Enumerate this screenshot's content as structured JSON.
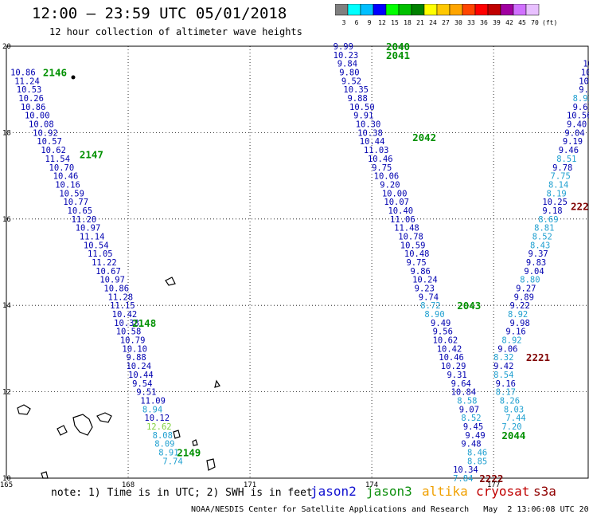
{
  "header": {
    "title": "12:00 — 23:59 UTC 05/01/2018",
    "subtitle": "12 hour collection of altimeter wave heights"
  },
  "colorbar": {
    "ticks": [
      "3",
      "6",
      "9",
      "12",
      "15",
      "18",
      "21",
      "24",
      "27",
      "30",
      "33",
      "36",
      "39",
      "42",
      "45",
      "70"
    ],
    "unit": "(ft)",
    "colors": [
      "#7f7f7f",
      "#00ffff",
      "#00bfff",
      "#0000ff",
      "#00ff00",
      "#00c000",
      "#008000",
      "#ffff00",
      "#ffc800",
      "#ffa500",
      "#ff4500",
      "#ff0000",
      "#c00000",
      "#a000a0",
      "#d070ff",
      "#e8c0ff"
    ]
  },
  "axes": {
    "x_ticks": [
      "165",
      "168",
      "171",
      "174",
      "177"
    ],
    "y_ticks": [
      "20",
      "18",
      "16",
      "14",
      "12",
      "10"
    ]
  },
  "footer": {
    "note": "note: 1) Time is in UTC; 2) SWH is in feet",
    "credit": "NOAA/NESDIS Center for Satellite Applications and Research   May  2 13:06:08 UTC 2018",
    "satellites": [
      {
        "name": "jason2",
        "color": "#1010d0"
      },
      {
        "name": "jason3",
        "color": "#109010"
      },
      {
        "name": "altika",
        "color": "#f0a000"
      },
      {
        "name": "cryosat",
        "color": "#c00000"
      },
      {
        "name": "s3a",
        "color": "#900000"
      }
    ]
  },
  "colors": {
    "track_blue": "#0000b0",
    "track_cyan": "#20a0d0",
    "track_lightgreen": "#80d040",
    "time_green": "#009000",
    "time_darkred": "#800000"
  },
  "tracks": [
    {
      "id": "track-left",
      "times": [
        {
          "label": "2146",
          "x": 165.9,
          "y": 19.4
        },
        {
          "label": "2147",
          "x": 166.8,
          "y": 17.5
        },
        {
          "label": "2148",
          "x": 168.1,
          "y": 13.6
        },
        {
          "label": "2149",
          "x": 169.2,
          "y": 10.6
        }
      ],
      "points": [
        {
          "v": "10.86",
          "x": 165.1,
          "y": 19.4,
          "c": "b"
        },
        {
          "v": "11.24",
          "x": 165.2,
          "y": 19.2,
          "c": "b"
        },
        {
          "v": "10.53",
          "x": 165.25,
          "y": 19.0,
          "c": "b"
        },
        {
          "v": "10.26",
          "x": 165.3,
          "y": 18.8,
          "c": "b"
        },
        {
          "v": "10.86",
          "x": 165.35,
          "y": 18.6,
          "c": "b"
        },
        {
          "v": "10.00",
          "x": 165.45,
          "y": 18.4,
          "c": "b"
        },
        {
          "v": "10.08",
          "x": 165.55,
          "y": 18.2,
          "c": "b"
        },
        {
          "v": "10.92",
          "x": 165.65,
          "y": 18.0,
          "c": "b"
        },
        {
          "v": "10.57",
          "x": 165.75,
          "y": 17.8,
          "c": "b"
        },
        {
          "v": "10.62",
          "x": 165.85,
          "y": 17.6,
          "c": "b"
        },
        {
          "v": "11.54",
          "x": 165.95,
          "y": 17.4,
          "c": "b"
        },
        {
          "v": "10.70",
          "x": 166.05,
          "y": 17.2,
          "c": "b"
        },
        {
          "v": "10.46",
          "x": 166.15,
          "y": 17.0,
          "c": "b"
        },
        {
          "v": "10.16",
          "x": 166.2,
          "y": 16.8,
          "c": "b"
        },
        {
          "v": "10.59",
          "x": 166.3,
          "y": 16.6,
          "c": "b"
        },
        {
          "v": "10.77",
          "x": 166.4,
          "y": 16.4,
          "c": "b"
        },
        {
          "v": "10.65",
          "x": 166.5,
          "y": 16.2,
          "c": "b"
        },
        {
          "v": "11.20",
          "x": 166.6,
          "y": 16.0,
          "c": "b"
        },
        {
          "v": "10.97",
          "x": 166.7,
          "y": 15.8,
          "c": "b"
        },
        {
          "v": "11.14",
          "x": 166.8,
          "y": 15.6,
          "c": "b"
        },
        {
          "v": "10.54",
          "x": 166.9,
          "y": 15.4,
          "c": "b"
        },
        {
          "v": "11.05",
          "x": 167.0,
          "y": 15.2,
          "c": "b"
        },
        {
          "v": "11.22",
          "x": 167.1,
          "y": 15.0,
          "c": "b"
        },
        {
          "v": "10.67",
          "x": 167.2,
          "y": 14.8,
          "c": "b"
        },
        {
          "v": "10.97",
          "x": 167.3,
          "y": 14.6,
          "c": "b"
        },
        {
          "v": "10.86",
          "x": 167.4,
          "y": 14.4,
          "c": "b"
        },
        {
          "v": "11.28",
          "x": 167.5,
          "y": 14.2,
          "c": "b"
        },
        {
          "v": "11.15",
          "x": 167.55,
          "y": 14.0,
          "c": "b"
        },
        {
          "v": "10.42",
          "x": 167.6,
          "y": 13.8,
          "c": "b"
        },
        {
          "v": "10.38",
          "x": 167.65,
          "y": 13.6,
          "c": "b"
        },
        {
          "v": "10.58",
          "x": 167.7,
          "y": 13.4,
          "c": "b"
        },
        {
          "v": "10.79",
          "x": 167.8,
          "y": 13.2,
          "c": "b"
        },
        {
          "v": "10.10",
          "x": 167.85,
          "y": 13.0,
          "c": "b"
        },
        {
          "v": "9.88",
          "x": 167.95,
          "y": 12.8,
          "c": "b"
        },
        {
          "v": "10.24",
          "x": 167.95,
          "y": 12.6,
          "c": "b"
        },
        {
          "v": "10.44",
          "x": 168.0,
          "y": 12.4,
          "c": "b"
        },
        {
          "v": "9.54",
          "x": 168.1,
          "y": 12.2,
          "c": "b"
        },
        {
          "v": "9.51",
          "x": 168.2,
          "y": 12.0,
          "c": "b"
        },
        {
          "v": "11.09",
          "x": 168.3,
          "y": 11.8,
          "c": "b"
        },
        {
          "v": "8.94",
          "x": 168.35,
          "y": 11.6,
          "c": "c"
        },
        {
          "v": "10.12",
          "x": 168.4,
          "y": 11.4,
          "c": "b"
        },
        {
          "v": "12.62",
          "x": 168.45,
          "y": 11.2,
          "c": "g"
        },
        {
          "v": "8.08",
          "x": 168.6,
          "y": 11.0,
          "c": "c"
        },
        {
          "v": "8.09",
          "x": 168.65,
          "y": 10.8,
          "c": "c"
        },
        {
          "v": "8.91",
          "x": 168.75,
          "y": 10.6,
          "c": "c"
        },
        {
          "v": "7.74",
          "x": 168.85,
          "y": 10.4,
          "c": "c"
        }
      ]
    },
    {
      "id": "track-middle",
      "times": [
        {
          "label": "2040",
          "x": 174.35,
          "y": 20.0
        },
        {
          "label": "2041",
          "x": 174.35,
          "y": 19.8
        },
        {
          "label": "2042",
          "x": 175.0,
          "y": 17.9
        },
        {
          "label": "2043",
          "x": 176.1,
          "y": 14.0
        },
        {
          "label": "2044",
          "x": 177.2,
          "y": 11.0
        }
      ],
      "points": [
        {
          "v": "9.99",
          "x": 173.05,
          "y": 20.0,
          "c": "b"
        },
        {
          "v": "10.23",
          "x": 173.05,
          "y": 19.8,
          "c": "b"
        },
        {
          "v": "9.84",
          "x": 173.15,
          "y": 19.6,
          "c": "b"
        },
        {
          "v": "9.80",
          "x": 173.2,
          "y": 19.4,
          "c": "b"
        },
        {
          "v": "9.52",
          "x": 173.25,
          "y": 19.2,
          "c": "b"
        },
        {
          "v": "10.35",
          "x": 173.3,
          "y": 19.0,
          "c": "b"
        },
        {
          "v": "9.88",
          "x": 173.4,
          "y": 18.8,
          "c": "b"
        },
        {
          "v": "10.50",
          "x": 173.45,
          "y": 18.6,
          "c": "b"
        },
        {
          "v": "9.91",
          "x": 173.55,
          "y": 18.4,
          "c": "b"
        },
        {
          "v": "10.30",
          "x": 173.6,
          "y": 18.2,
          "c": "b"
        },
        {
          "v": "10.38",
          "x": 173.65,
          "y": 18.0,
          "c": "b"
        },
        {
          "v": "10.44",
          "x": 173.7,
          "y": 17.8,
          "c": "b"
        },
        {
          "v": "11.03",
          "x": 173.8,
          "y": 17.6,
          "c": "b"
        },
        {
          "v": "10.46",
          "x": 173.9,
          "y": 17.4,
          "c": "b"
        },
        {
          "v": "9.75",
          "x": 174.0,
          "y": 17.2,
          "c": "b"
        },
        {
          "v": "10.06",
          "x": 174.05,
          "y": 17.0,
          "c": "b"
        },
        {
          "v": "9.20",
          "x": 174.2,
          "y": 16.8,
          "c": "b"
        },
        {
          "v": "10.00",
          "x": 174.25,
          "y": 16.6,
          "c": "b"
        },
        {
          "v": "10.07",
          "x": 174.3,
          "y": 16.4,
          "c": "b"
        },
        {
          "v": "10.40",
          "x": 174.4,
          "y": 16.2,
          "c": "b"
        },
        {
          "v": "11.06",
          "x": 174.45,
          "y": 16.0,
          "c": "b"
        },
        {
          "v": "11.48",
          "x": 174.55,
          "y": 15.8,
          "c": "b"
        },
        {
          "v": "10.78",
          "x": 174.65,
          "y": 15.6,
          "c": "b"
        },
        {
          "v": "10.59",
          "x": 174.7,
          "y": 15.4,
          "c": "b"
        },
        {
          "v": "10.48",
          "x": 174.8,
          "y": 15.2,
          "c": "b"
        },
        {
          "v": "9.75",
          "x": 174.85,
          "y": 15.0,
          "c": "b"
        },
        {
          "v": "9.86",
          "x": 174.95,
          "y": 14.8,
          "c": "b"
        },
        {
          "v": "10.24",
          "x": 175.0,
          "y": 14.6,
          "c": "b"
        },
        {
          "v": "9.23",
          "x": 175.05,
          "y": 14.4,
          "c": "b"
        },
        {
          "v": "9.74",
          "x": 175.15,
          "y": 14.2,
          "c": "b"
        },
        {
          "v": "8.72",
          "x": 175.2,
          "y": 14.0,
          "c": "c"
        },
        {
          "v": "8.90",
          "x": 175.3,
          "y": 13.8,
          "c": "c"
        },
        {
          "v": "9.49",
          "x": 175.45,
          "y": 13.6,
          "c": "b"
        },
        {
          "v": "9.56",
          "x": 175.5,
          "y": 13.4,
          "c": "b"
        },
        {
          "v": "10.62",
          "x": 175.5,
          "y": 13.2,
          "c": "b"
        },
        {
          "v": "10.42",
          "x": 175.6,
          "y": 13.0,
          "c": "b"
        },
        {
          "v": "10.46",
          "x": 175.65,
          "y": 12.8,
          "c": "b"
        },
        {
          "v": "10.29",
          "x": 175.7,
          "y": 12.6,
          "c": "b"
        },
        {
          "v": "9.31",
          "x": 175.85,
          "y": 12.4,
          "c": "b"
        },
        {
          "v": "9.64",
          "x": 175.95,
          "y": 12.2,
          "c": "b"
        },
        {
          "v": "10.84",
          "x": 175.95,
          "y": 12.0,
          "c": "b"
        },
        {
          "v": "8.58",
          "x": 176.1,
          "y": 11.8,
          "c": "c"
        },
        {
          "v": "9.07",
          "x": 176.15,
          "y": 11.6,
          "c": "b"
        },
        {
          "v": "8.52",
          "x": 176.2,
          "y": 11.4,
          "c": "c"
        },
        {
          "v": "9.45",
          "x": 176.25,
          "y": 11.2,
          "c": "b"
        },
        {
          "v": "9.49",
          "x": 176.3,
          "y": 11.0,
          "c": "b"
        },
        {
          "v": "9.48",
          "x": 176.2,
          "y": 10.8,
          "c": "b"
        },
        {
          "v": "8.46",
          "x": 176.35,
          "y": 10.6,
          "c": "c"
        },
        {
          "v": "8.85",
          "x": 176.35,
          "y": 10.4,
          "c": "c"
        },
        {
          "v": "10.34",
          "x": 176.0,
          "y": 10.2,
          "c": "b"
        },
        {
          "v": "7.84",
          "x": 176.0,
          "y": 10.0,
          "c": "c"
        }
      ]
    },
    {
      "id": "track-right",
      "times": [
        {
          "label": "2220",
          "x": 178.9,
          "y": 16.3
        },
        {
          "label": "2221",
          "x": 177.8,
          "y": 12.8
        },
        {
          "label": "2222",
          "x": 176.65,
          "y": 10.0
        },
        {
          "label": "22",
          "x": 179.85,
          "y": 19.8
        }
      ],
      "points": [
        {
          "v": "9.65",
          "x": 179.35,
          "y": 19.8,
          "c": "b"
        },
        {
          "v": "10.25",
          "x": 179.2,
          "y": 19.6,
          "c": "b"
        },
        {
          "v": "10.19",
          "x": 179.15,
          "y": 19.4,
          "c": "b"
        },
        {
          "v": "10.59",
          "x": 179.1,
          "y": 19.2,
          "c": "b"
        },
        {
          "v": "9.57",
          "x": 179.1,
          "y": 19.0,
          "c": "b"
        },
        {
          "v": "8.93",
          "x": 178.95,
          "y": 18.8,
          "c": "c"
        },
        {
          "v": "9.61",
          "x": 178.95,
          "y": 18.6,
          "c": "b"
        },
        {
          "v": "10.56",
          "x": 178.8,
          "y": 18.4,
          "c": "b"
        },
        {
          "v": "9.40",
          "x": 178.8,
          "y": 18.2,
          "c": "b"
        },
        {
          "v": "9.04",
          "x": 178.75,
          "y": 18.0,
          "c": "b"
        },
        {
          "v": "9.19",
          "x": 178.7,
          "y": 17.8,
          "c": "b"
        },
        {
          "v": "9.46",
          "x": 178.6,
          "y": 17.6,
          "c": "b"
        },
        {
          "v": "8.51",
          "x": 178.55,
          "y": 17.4,
          "c": "c"
        },
        {
          "v": "9.78",
          "x": 178.45,
          "y": 17.2,
          "c": "b"
        },
        {
          "v": "7.75",
          "x": 178.4,
          "y": 17.0,
          "c": "c"
        },
        {
          "v": "8.14",
          "x": 178.35,
          "y": 16.8,
          "c": "c"
        },
        {
          "v": "8.19",
          "x": 178.3,
          "y": 16.6,
          "c": "c"
        },
        {
          "v": "10.25",
          "x": 178.2,
          "y": 16.4,
          "c": "b"
        },
        {
          "v": "9.18",
          "x": 178.2,
          "y": 16.2,
          "c": "b"
        },
        {
          "v": "8.69",
          "x": 178.1,
          "y": 16.0,
          "c": "c"
        },
        {
          "v": "8.81",
          "x": 178.0,
          "y": 15.8,
          "c": "c"
        },
        {
          "v": "8.52",
          "x": 177.95,
          "y": 15.6,
          "c": "c"
        },
        {
          "v": "8.43",
          "x": 177.9,
          "y": 15.4,
          "c": "c"
        },
        {
          "v": "9.37",
          "x": 177.85,
          "y": 15.2,
          "c": "b"
        },
        {
          "v": "9.83",
          "x": 177.8,
          "y": 15.0,
          "c": "b"
        },
        {
          "v": "9.04",
          "x": 177.75,
          "y": 14.8,
          "c": "b"
        },
        {
          "v": "8.80",
          "x": 177.65,
          "y": 14.6,
          "c": "c"
        },
        {
          "v": "9.27",
          "x": 177.55,
          "y": 14.4,
          "c": "b"
        },
        {
          "v": "9.89",
          "x": 177.5,
          "y": 14.2,
          "c": "b"
        },
        {
          "v": "9.22",
          "x": 177.4,
          "y": 14.0,
          "c": "b"
        },
        {
          "v": "8.92",
          "x": 177.35,
          "y": 13.8,
          "c": "c"
        },
        {
          "v": "9.98",
          "x": 177.4,
          "y": 13.6,
          "c": "b"
        },
        {
          "v": "9.16",
          "x": 177.3,
          "y": 13.4,
          "c": "b"
        },
        {
          "v": "8.92",
          "x": 177.2,
          "y": 13.2,
          "c": "c"
        },
        {
          "v": "9.06",
          "x": 177.1,
          "y": 13.0,
          "c": "b"
        },
        {
          "v": "8.32",
          "x": 177.0,
          "y": 12.8,
          "c": "c"
        },
        {
          "v": "9.42",
          "x": 177.0,
          "y": 12.6,
          "c": "b"
        },
        {
          "v": "8.54",
          "x": 177.0,
          "y": 12.4,
          "c": "c"
        },
        {
          "v": "9.16",
          "x": 177.05,
          "y": 12.2,
          "c": "b"
        },
        {
          "v": "8.17",
          "x": 177.05,
          "y": 12.0,
          "c": "c"
        },
        {
          "v": "8.26",
          "x": 177.15,
          "y": 11.8,
          "c": "c"
        },
        {
          "v": "8.03",
          "x": 177.25,
          "y": 11.6,
          "c": "c"
        },
        {
          "v": "7.44",
          "x": 177.3,
          "y": 11.4,
          "c": "c"
        },
        {
          "v": "7.20",
          "x": 177.2,
          "y": 11.2,
          "c": "c"
        }
      ]
    }
  ]
}
